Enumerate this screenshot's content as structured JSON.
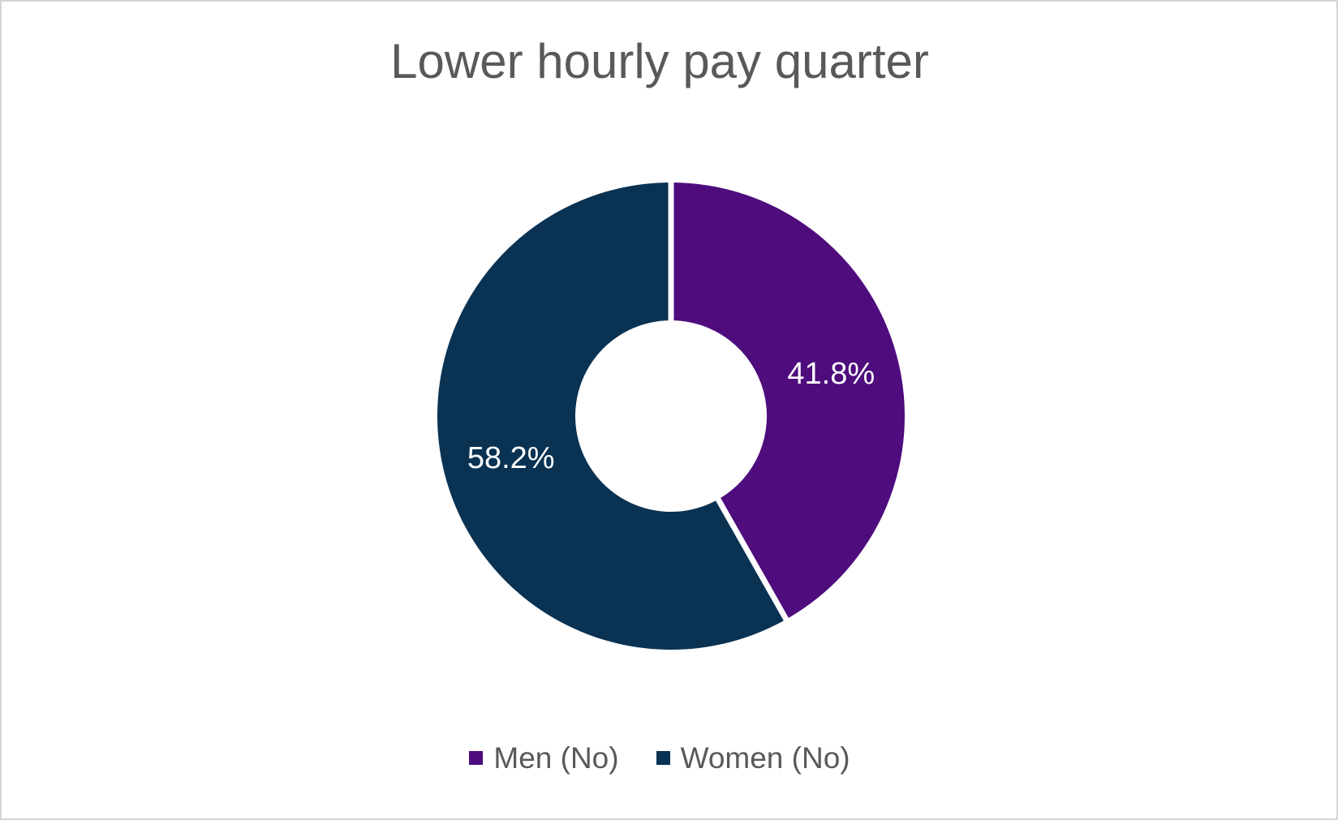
{
  "window": {
    "background": "#FFFFFF",
    "border_color": "#D5D5D5"
  },
  "chart_data": {
    "type": "pie",
    "subtype": "doughnut",
    "title": "Lower hourly pay quarter",
    "categories": [
      "Men (No)",
      "Women (No)"
    ],
    "values": [
      41.8,
      58.2
    ],
    "data_labels": [
      "41.8%",
      "58.2%"
    ],
    "slice_colors": [
      "#4E0C7D",
      "#093253"
    ],
    "separator_color": "#FFFFFF",
    "data_label_color": "#FFFFFF",
    "title_color": "#595959",
    "legend_position": "bottom",
    "hole_ratio": 0.41,
    "start_angle_deg": 0,
    "direction": "clockwise",
    "total": 100
  },
  "legend": {
    "items": [
      {
        "label": "Men (No)",
        "color": "#4E0C7D"
      },
      {
        "label": "Women (No)",
        "color": "#093253"
      }
    ]
  }
}
